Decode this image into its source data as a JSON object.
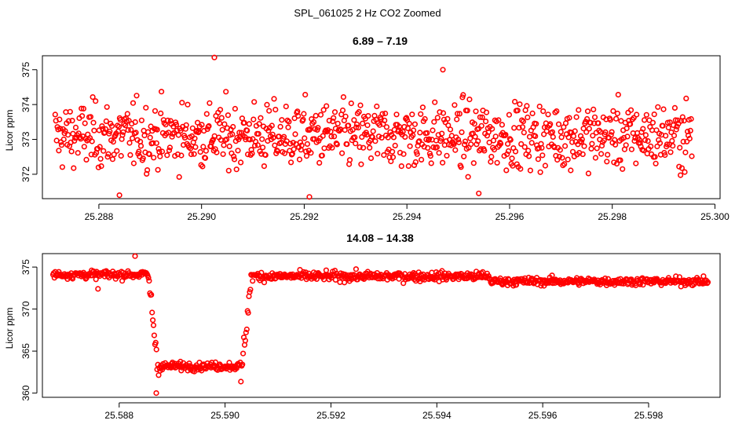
{
  "page_title": "SPL_061025  2 Hz CO2 Zoomed",
  "colors": {
    "points": "#ff0000",
    "axes": "#000000",
    "background": "#ffffff"
  },
  "chart_data": [
    {
      "type": "scatter",
      "title": "6.89 – 7.19",
      "xlabel": "",
      "ylabel": "Licor ppm",
      "xlim": [
        25.2869,
        25.3001
      ],
      "ylim": [
        371.3,
        375.4
      ],
      "xticks": [
        25.288,
        25.29,
        25.292,
        25.294,
        25.296,
        25.298,
        25.3
      ],
      "xtick_labels": [
        "25.288",
        "25.290",
        "25.292",
        "25.294",
        "25.296",
        "25.298",
        "25.300"
      ],
      "yticks": [
        372,
        373,
        374,
        375
      ],
      "ytick_labels": [
        "372",
        "373",
        "374",
        "375"
      ],
      "x_start": 25.28715,
      "x_end": 25.29955,
      "n_points": 900,
      "center_ppm": 373.1,
      "spread_ppm": 0.65,
      "noted_extremes": [
        {
          "x": 25.29025,
          "y": 375.35
        },
        {
          "x": 25.2947,
          "y": 375.0
        },
        {
          "x": 25.2921,
          "y": 371.35
        },
        {
          "x": 25.2884,
          "y": 371.4
        },
        {
          "x": 25.2954,
          "y": 371.45
        }
      ]
    },
    {
      "type": "scatter",
      "title": "14.08 – 14.38",
      "xlabel": "",
      "ylabel": "Licor ppm",
      "xlim": [
        25.58655,
        25.59935
      ],
      "ylim": [
        359.5,
        376.6
      ],
      "xticks": [
        25.588,
        25.59,
        25.592,
        25.594,
        25.596,
        25.598
      ],
      "xtick_labels": [
        "25.588",
        "25.590",
        "25.592",
        "25.594",
        "25.596",
        "25.598"
      ],
      "yticks": [
        360,
        365,
        370,
        375
      ],
      "ytick_labels": [
        "360",
        "365",
        "370",
        "375"
      ],
      "x_start": 25.58675,
      "x_end": 25.59912,
      "n_points": 900,
      "segments": [
        {
          "x_from": 25.58675,
          "x_to": 25.58855,
          "mean_ppm": 374.1,
          "noise_ppm": 0.6
        },
        {
          "x_from": 25.58855,
          "x_to": 25.58875,
          "mean_ppm": 367.0,
          "noise_ppm": 5.0,
          "note": "drop"
        },
        {
          "x_from": 25.58875,
          "x_to": 25.5903,
          "mean_ppm": 363.2,
          "noise_ppm": 0.6
        },
        {
          "x_from": 25.5903,
          "x_to": 25.5905,
          "mean_ppm": 368.0,
          "noise_ppm": 5.0,
          "note": "rise"
        },
        {
          "x_from": 25.5905,
          "x_to": 25.595,
          "mean_ppm": 373.9,
          "noise_ppm": 0.7
        },
        {
          "x_from": 25.595,
          "x_to": 25.59912,
          "mean_ppm": 373.3,
          "noise_ppm": 0.6
        }
      ],
      "noted_extremes": [
        {
          "x": 25.5883,
          "y": 376.3
        },
        {
          "x": 25.5887,
          "y": 360.0
        },
        {
          "x": 25.5876,
          "y": 372.4
        }
      ]
    }
  ]
}
